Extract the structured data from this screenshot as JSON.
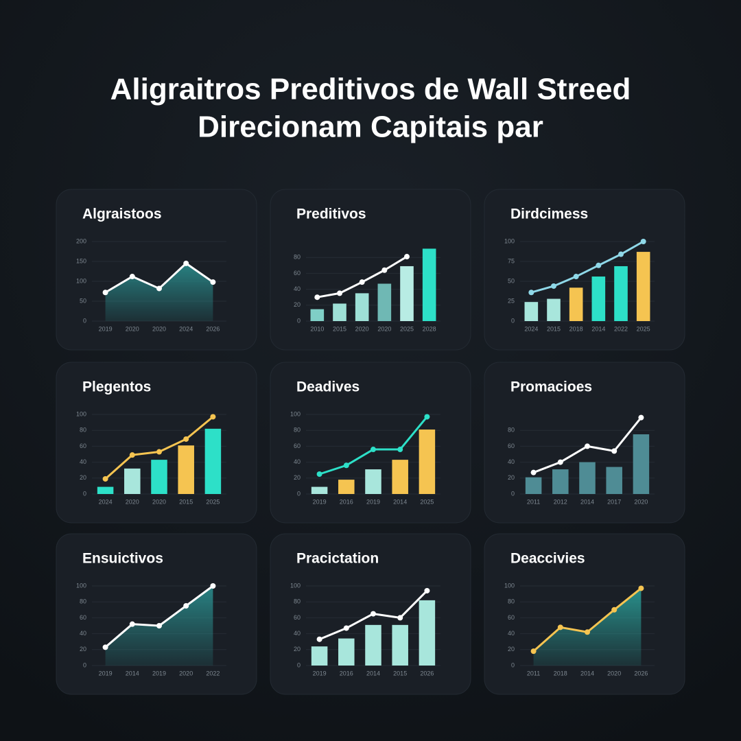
{
  "title": [
    "Aligraitros Preditivos de Wall Streed",
    "Direcionam Capitais par"
  ],
  "chart_data": [
    {
      "type": "area",
      "title": "Algraistoos",
      "categories": [
        "2019",
        "2020",
        "2020",
        "2024",
        "2026"
      ],
      "line_values": [
        72,
        112,
        82,
        145,
        98
      ],
      "line_color": "#ffffff",
      "area_color": "#2a8c8c",
      "ylim": [
        0,
        200
      ],
      "yticks": [
        0,
        50,
        100,
        150,
        200
      ]
    },
    {
      "type": "combo",
      "title": "Preditivos",
      "categories": [
        "2010",
        "2015",
        "2020",
        "2020",
        "2025",
        "2028"
      ],
      "bar_values": [
        15,
        22,
        35,
        47,
        69,
        91
      ],
      "bar_colors": [
        "#7fcfc6",
        "#9ee0d6",
        "#9ee0d6",
        "#6fb8b4",
        "#b8ece4",
        "#2de0c8"
      ],
      "line_values": [
        30,
        35,
        49,
        64,
        81,
        null
      ],
      "line_color": "#ffffff",
      "ylim": [
        0,
        100
      ],
      "yticks": [
        0,
        20,
        40,
        60,
        80
      ]
    },
    {
      "type": "combo",
      "title": "Dirdcimess",
      "categories": [
        "2024",
        "2015",
        "2018",
        "2014",
        "2022",
        "2025"
      ],
      "bar_values": [
        24,
        28,
        42,
        56,
        69,
        87
      ],
      "bar_colors": [
        "#a8e6dc",
        "#a8e6dc",
        "#f5c451",
        "#2de0c8",
        "#2de0c8",
        "#f5c451"
      ],
      "line_values": [
        36,
        44,
        56,
        70,
        84,
        100
      ],
      "line_color": "#8fd8e8",
      "ylim": [
        0,
        100
      ],
      "yticks": [
        0,
        25,
        50,
        75,
        100
      ]
    },
    {
      "type": "combo",
      "title": "Plegentos",
      "categories": [
        "2024",
        "2020",
        "2020",
        "2015",
        "2025"
      ],
      "bar_values": [
        9,
        32,
        43,
        61,
        82
      ],
      "bar_colors": [
        "#2de0c8",
        "#a8e6dc",
        "#2de0c8",
        "#f5c451",
        "#2de0c8"
      ],
      "line_values": [
        19,
        49,
        53,
        69,
        97
      ],
      "line_color": "#f5c451",
      "ylim": [
        0,
        100
      ],
      "yticks": [
        0,
        20,
        40,
        60,
        80,
        100
      ]
    },
    {
      "type": "combo",
      "title": "Deadives",
      "categories": [
        "2019",
        "2016",
        "2019",
        "2014",
        "2025"
      ],
      "bar_values": [
        9,
        18,
        31,
        43,
        81
      ],
      "bar_colors": [
        "#a8e6dc",
        "#f5c451",
        "#a8e6dc",
        "#f5c451",
        "#f5c451"
      ],
      "line_values": [
        25,
        36,
        56,
        56,
        97
      ],
      "line_color": "#2de0c8",
      "ylim": [
        0,
        100
      ],
      "yticks": [
        0,
        20,
        40,
        60,
        80,
        100
      ]
    },
    {
      "type": "combo",
      "title": "Promacioes",
      "categories": [
        "2011",
        "2012",
        "2014",
        "2017",
        "2020"
      ],
      "bar_values": [
        21,
        31,
        40,
        34,
        75
      ],
      "bar_colors": [
        "#4f8c95",
        "#4f8c95",
        "#4f8c95",
        "#4f8c95",
        "#4f8c95"
      ],
      "line_values": [
        27,
        40,
        60,
        54,
        96
      ],
      "line_color": "#ffffff",
      "ylim": [
        0,
        100
      ],
      "yticks": [
        0,
        20,
        40,
        60,
        80
      ]
    },
    {
      "type": "area",
      "title": "Ensuictivos",
      "categories": [
        "2019",
        "2014",
        "2019",
        "2020",
        "2022"
      ],
      "line_values": [
        23,
        52,
        50,
        75,
        100
      ],
      "line_color": "#ffffff",
      "area_color": "#2a8c8c",
      "ylim": [
        0,
        100
      ],
      "yticks": [
        0,
        20,
        40,
        60,
        80,
        100
      ]
    },
    {
      "type": "combo",
      "title": "Pracictation",
      "categories": [
        "2019",
        "2016",
        "2014",
        "2015",
        "2026"
      ],
      "bar_values": [
        24,
        34,
        51,
        51,
        82
      ],
      "bar_colors": [
        "#a8e6dc",
        "#a8e6dc",
        "#a8e6dc",
        "#a8e6dc",
        "#a8e6dc"
      ],
      "line_values": [
        33,
        47,
        65,
        60,
        94
      ],
      "line_color": "#ffffff",
      "ylim": [
        0,
        100
      ],
      "yticks": [
        0,
        20,
        40,
        60,
        80,
        100
      ]
    },
    {
      "type": "area",
      "title": "Deaccivies",
      "categories": [
        "2011",
        "2018",
        "2014",
        "2020",
        "2026"
      ],
      "line_values": [
        18,
        48,
        42,
        70,
        97
      ],
      "line_color": "#f5c451",
      "area_color": "#2a9c96",
      "ylim": [
        0,
        100
      ],
      "yticks": [
        0,
        20,
        40,
        60,
        80,
        100
      ]
    }
  ]
}
